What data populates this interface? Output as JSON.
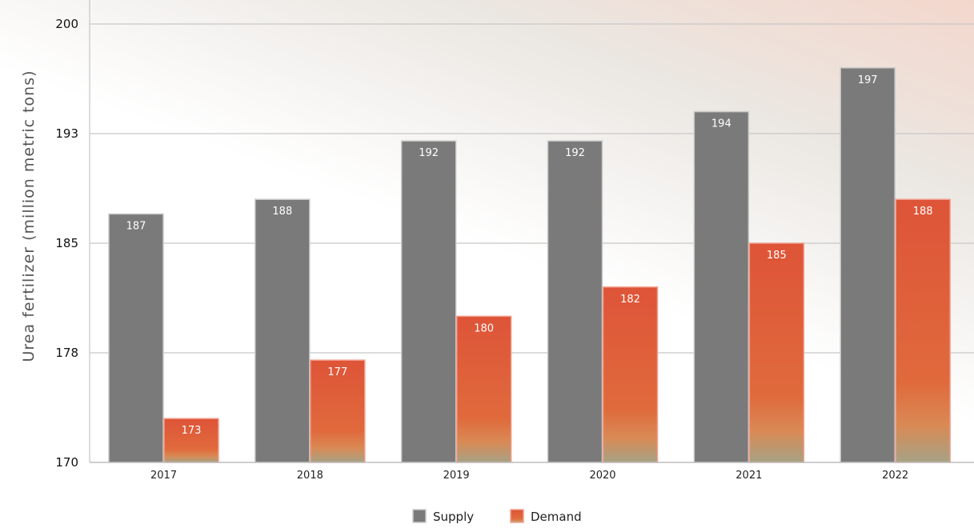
{
  "chart_data": {
    "type": "bar",
    "title": "",
    "xlabel": "",
    "ylabel": "Urea fertilizer (million metric tons)",
    "categories": [
      "2017",
      "2018",
      "2019",
      "2020",
      "2021",
      "2022"
    ],
    "series": [
      {
        "name": "Supply",
        "values": [
          187,
          188,
          192,
          192,
          194,
          197
        ],
        "color": "#7a7a7a"
      },
      {
        "name": "Demand",
        "values": [
          173,
          177,
          180,
          182,
          185,
          188
        ],
        "color": "#e0563a"
      }
    ],
    "ylim": [
      170,
      200
    ],
    "yticks": [
      {
        "value": 170,
        "label": "170"
      },
      {
        "value": 177.5,
        "label": "178"
      },
      {
        "value": 185,
        "label": "185"
      },
      {
        "value": 192.5,
        "label": "193"
      },
      {
        "value": 200,
        "label": "200"
      }
    ],
    "grid": true,
    "legend_position": "bottom-center"
  }
}
